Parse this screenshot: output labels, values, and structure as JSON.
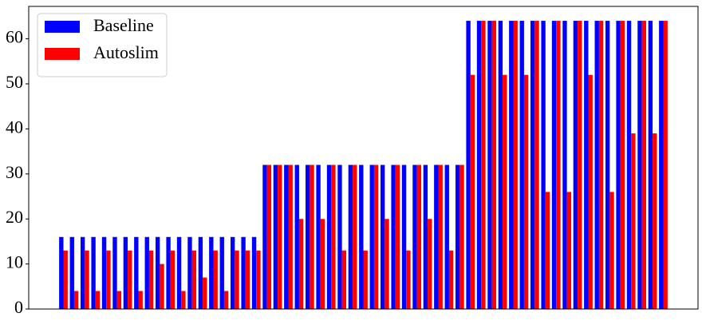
{
  "chart_data": {
    "type": "bar",
    "series": [
      {
        "name": "Baseline",
        "color": "#0000ff",
        "values": [
          16,
          16,
          16,
          16,
          16,
          16,
          16,
          16,
          16,
          16,
          16,
          16,
          16,
          16,
          16,
          16,
          16,
          16,
          16,
          32,
          32,
          32,
          32,
          32,
          32,
          32,
          32,
          32,
          32,
          32,
          32,
          32,
          32,
          32,
          32,
          32,
          32,
          32,
          64,
          64,
          64,
          64,
          64,
          64,
          64,
          64,
          64,
          64,
          64,
          64,
          64,
          64,
          64,
          64,
          64,
          64,
          64
        ]
      },
      {
        "name": "Autoslim",
        "color": "#ff0000",
        "values": [
          13,
          4,
          13,
          4,
          13,
          4,
          13,
          4,
          13,
          10,
          13,
          4,
          13,
          7,
          13,
          4,
          13,
          13,
          13,
          32,
          32,
          32,
          20,
          32,
          20,
          32,
          13,
          32,
          13,
          32,
          20,
          32,
          13,
          32,
          20,
          32,
          13,
          32,
          52,
          64,
          64,
          52,
          64,
          52,
          64,
          26,
          64,
          26,
          64,
          52,
          64,
          26,
          64,
          39,
          64,
          39,
          64
        ]
      }
    ],
    "ylim": [
      0,
      67.2
    ],
    "yticks": [
      0,
      10,
      20,
      30,
      40,
      50,
      60
    ],
    "legend": "upper left"
  }
}
